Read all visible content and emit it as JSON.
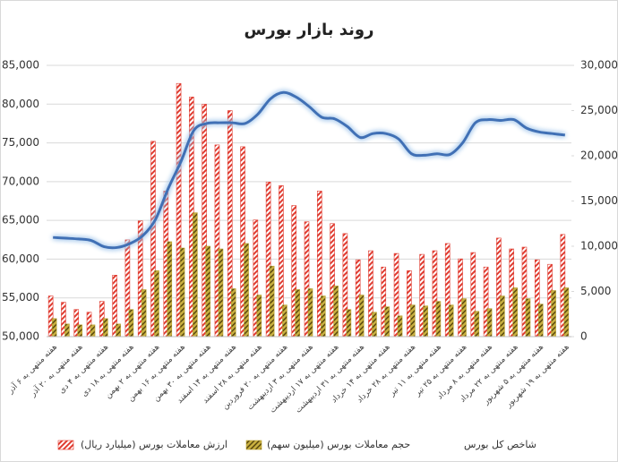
{
  "chart_data": {
    "type": "bar-line",
    "title": "روند بازار بورس",
    "categories": [
      "هفته منتهی به ۶ آذر",
      null,
      "هفته منتهی به ۲۰ آذر",
      null,
      "هفته منتهی به ۴ دی",
      null,
      "هفته منتهی به ۱۸ دی",
      null,
      "هفته منتهی به ۲ بهمن",
      null,
      "هفته منتهی به ۱۶ بهمن",
      null,
      "هفته منتهی به ۳۰ بهمن",
      null,
      "هفته منتهی به ۱۴ اسفند",
      null,
      "هفته منتهی به ۲۸ اسفند",
      null,
      "هفته منتهی به ۲۰ فروردین",
      null,
      "هفته منتهی به ۳ اردیبهشت",
      null,
      "هفته منتهی به ۱۷ اردیبهشت",
      null,
      "هفته منتهی به ۳۱ اردیبهشت",
      null,
      "هفته منتهی به ۱۴ خرداد",
      null,
      "هفته منتهی به ۲۸ خرداد",
      null,
      "هفته منتهی به ۱۱ تیر",
      null,
      "هفته منتهی به ۲۵ تیر",
      null,
      "هفته منتهی به ۸ مرداد",
      null,
      "هفته منتهی به ۲۲ مرداد",
      null,
      "هفته منتهی به ۵ شهریور",
      null,
      "هفته منتهی به ۱۹ شهریور"
    ],
    "series": [
      {
        "name": "ارزش معاملات بورس (میلیارد ریال)",
        "kind": "bar",
        "axis": "y2",
        "color": "#e03c31",
        "values": [
          4500,
          3800,
          3000,
          2700,
          3900,
          6800,
          10700,
          12800,
          21600,
          16100,
          28000,
          26500,
          25700,
          21200,
          25000,
          21000,
          12900,
          17100,
          16700,
          14500,
          12700,
          16100,
          12500,
          11400,
          8500,
          9500,
          7700,
          9200,
          7300,
          9100,
          9500,
          10300,
          8600,
          9300,
          7700,
          10900,
          9700,
          9900,
          8500,
          8000,
          11300
        ]
      },
      {
        "name": "حجم معاملات بورس (میلیون سهم)",
        "kind": "bar",
        "axis": "y2",
        "color": "#b8a030",
        "values": [
          2000,
          1400,
          1300,
          1300,
          2000,
          1400,
          3000,
          5200,
          7300,
          10500,
          9800,
          13700,
          10000,
          9700,
          5300,
          10300,
          4600,
          7800,
          3500,
          5200,
          5300,
          4500,
          5600,
          3000,
          4600,
          2700,
          3300,
          2300,
          3500,
          3400,
          3900,
          3500,
          4200,
          2800,
          3100,
          4500,
          5400,
          4200,
          3600,
          5100,
          5400
        ]
      },
      {
        "name": "شاخص کل بورس",
        "kind": "line",
        "axis": "y",
        "color": "#3f6fb5",
        "values": [
          62800,
          62700,
          62600,
          62400,
          61600,
          61500,
          62000,
          63000,
          65100,
          69100,
          72600,
          76600,
          77500,
          77600,
          77600,
          77500,
          78700,
          80700,
          81500,
          80900,
          79700,
          78300,
          78100,
          77100,
          75700,
          76200,
          76200,
          75500,
          73600,
          73400,
          73600,
          73500,
          75000,
          77600,
          78000,
          77900,
          78000,
          76900,
          76400,
          76200,
          76000
        ]
      }
    ],
    "ylim": [
      50000,
      85000
    ],
    "yticks": [
      {
        "value": 50000,
        "label": "50,000"
      },
      {
        "value": 55000,
        "label": "55,000"
      },
      {
        "value": 60000,
        "label": "60,000"
      },
      {
        "value": 65000,
        "label": "65,000"
      },
      {
        "value": 70000,
        "label": "70,000"
      },
      {
        "value": 75000,
        "label": "75,000"
      },
      {
        "value": 80000,
        "label": "80,000"
      },
      {
        "value": 85000,
        "label": "85,000"
      }
    ],
    "y2lim": [
      0,
      30000
    ],
    "y2ticks": [
      0,
      {
        "value": 5000,
        "label": "5,000"
      },
      {
        "value": 10000,
        "label": "10,000"
      },
      {
        "value": 15000,
        "label": "15,000"
      },
      {
        "value": 20000,
        "label": "20,000"
      },
      {
        "value": 25000,
        "label": "25,000"
      },
      {
        "value": 30000,
        "label": "30,000"
      }
    ],
    "grid": true,
    "legend": "bottom"
  }
}
